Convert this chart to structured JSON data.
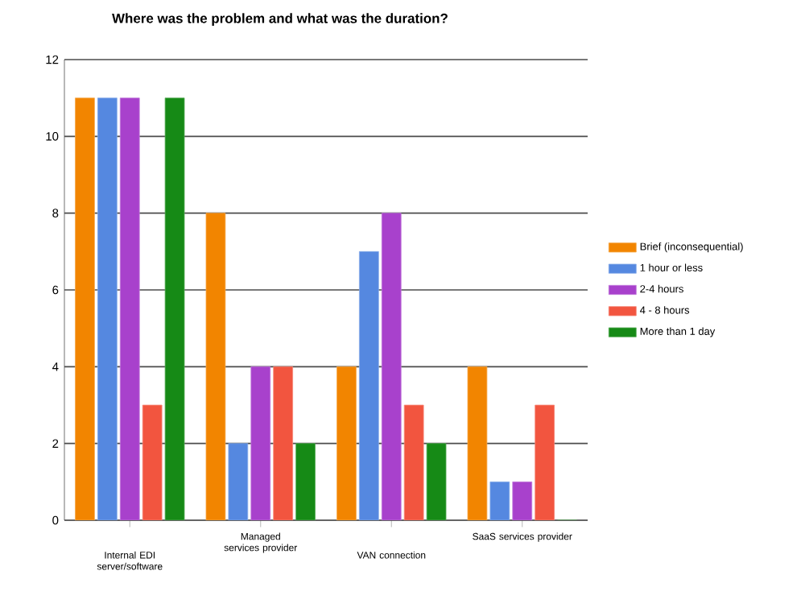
{
  "chart_data": {
    "type": "bar",
    "title": "Where was the problem and what was the duration?",
    "categories": [
      "Internal EDI server/software",
      "Managed services provider",
      "VAN connection",
      "SaaS services provider"
    ],
    "series": [
      {
        "name": "Brief (inconsequential)",
        "color": "#f28500",
        "values": [
          11,
          8,
          4,
          4
        ]
      },
      {
        "name": "1 hour or less",
        "color": "#5588e0",
        "values": [
          11,
          2,
          7,
          1
        ]
      },
      {
        "name": "2-4 hours",
        "color": "#a841cc",
        "values": [
          11,
          4,
          8,
          1
        ]
      },
      {
        "name": "4 - 8 hours",
        "color": "#f2553f",
        "values": [
          3,
          4,
          3,
          3
        ]
      },
      {
        "name": "More than 1 day",
        "color": "#168a16",
        "values": [
          11,
          2,
          2,
          0
        ]
      }
    ],
    "ylim": [
      0,
      12
    ],
    "yticks": [
      0,
      2,
      4,
      6,
      8,
      10,
      12
    ],
    "grid": "y",
    "legend": "right"
  }
}
